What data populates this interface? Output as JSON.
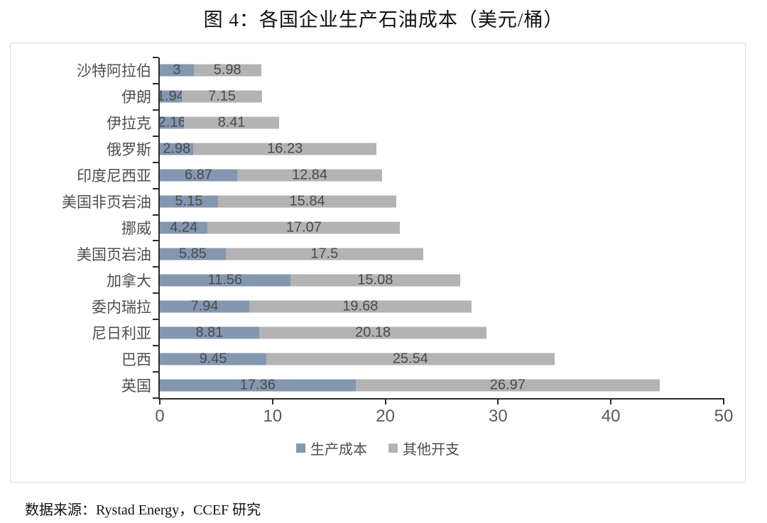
{
  "title": "图 4：各国企业生产石油成本（美元/桶）",
  "source": "数据来源：Rystad Energy，CCEF 研究",
  "colors": {
    "production_cost": "#8497B0",
    "other_expenses": "#B3B3B3",
    "axis": "#2b2b2b",
    "frame_border": "#d9d9d9"
  },
  "chart_data": {
    "type": "bar",
    "orientation": "horizontal",
    "stacked": true,
    "title": "图 4：各国企业生产石油成本（美元/桶）",
    "xlabel": "",
    "ylabel": "",
    "xlim": [
      0,
      50
    ],
    "xticks": [
      0,
      10,
      20,
      30,
      40,
      50
    ],
    "grid": false,
    "legend_position": "bottom",
    "categories": [
      "沙特阿拉伯",
      "伊朗",
      "伊拉克",
      "俄罗斯",
      "印度尼西亚",
      "美国非页岩油",
      "挪威",
      "美国页岩油",
      "加拿大",
      "委内瑞拉",
      "尼日利亚",
      "巴西",
      "英国"
    ],
    "series": [
      {
        "name": "生产成本",
        "key": "production-cost",
        "color": "#8497B0",
        "values": [
          3,
          1.94,
          2.16,
          2.98,
          6.87,
          5.15,
          4.24,
          5.85,
          11.56,
          7.94,
          8.81,
          9.45,
          17.36
        ]
      },
      {
        "name": "其他开支",
        "key": "other-expenses",
        "color": "#B3B3B3",
        "values": [
          5.98,
          7.15,
          8.41,
          16.23,
          12.84,
          15.84,
          17.07,
          17.5,
          15.08,
          19.68,
          20.18,
          25.54,
          26.97
        ]
      }
    ]
  }
}
